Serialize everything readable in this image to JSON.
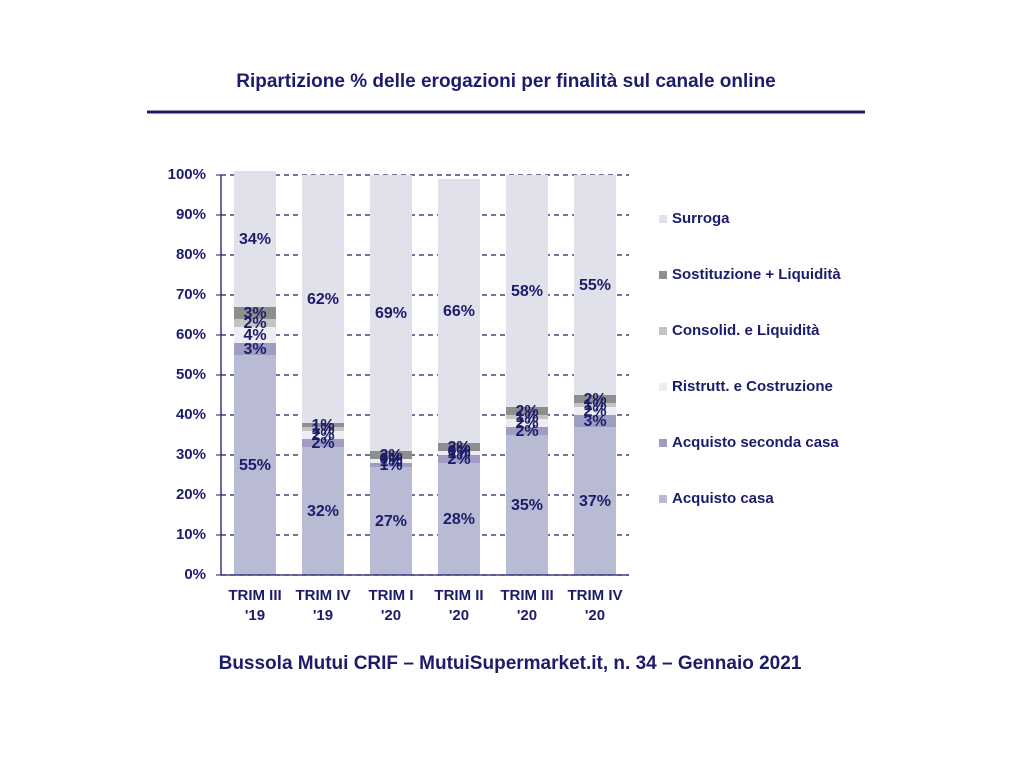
{
  "chart_data": {
    "type": "bar",
    "stacked": true,
    "title": "Ripartizione % delle erogazioni per finalità sul canale online",
    "source": "Bussola Mutui CRIF – MutuiSupermarket.it, n. 34 – Gennaio 2021",
    "categories": [
      "TRIM III '19",
      "TRIM IV '19",
      "TRIM I '20",
      "TRIM II '20",
      "TRIM III '20",
      "TRIM IV '20"
    ],
    "series": [
      {
        "name": "Acquisto casa",
        "color": "#b9bad3",
        "values": [
          55,
          32,
          27,
          28,
          35,
          37
        ],
        "value_labels": [
          "55%",
          "32%",
          "27%",
          "28%",
          "35%",
          "37%"
        ]
      },
      {
        "name": "Acquisto seconda casa",
        "color": "#9d9ec2",
        "values": [
          3,
          2,
          1,
          2,
          2,
          3
        ],
        "value_labels": [
          "3%",
          "2%",
          "1%",
          "2%",
          "2%",
          "3%"
        ]
      },
      {
        "name": "Ristrutt. e Costruzione",
        "color": "#ededf3",
        "values": [
          4,
          2,
          1,
          1,
          2,
          2
        ],
        "value_labels": [
          "4%",
          "2%",
          "1%",
          "1%",
          "2%",
          "2%"
        ]
      },
      {
        "name": "Consolid. e Liquidità",
        "color": "#c4c4c4",
        "values": [
          2,
          1,
          0,
          0,
          1,
          1
        ],
        "value_labels": [
          "2%",
          "1%",
          "0%",
          "0%",
          "1%",
          "1%"
        ]
      },
      {
        "name": "Sostituzione + Liquidità",
        "color": "#8e8e8e",
        "values": [
          3,
          1,
          2,
          2,
          2,
          2
        ],
        "value_labels": [
          "3%",
          "1%",
          "2%",
          "2%",
          "2%",
          "2%"
        ]
      },
      {
        "name": "Surroga",
        "color": "#e1e1ec",
        "values": [
          34,
          62,
          69,
          66,
          58,
          55
        ],
        "value_labels": [
          "34%",
          "62%",
          "69%",
          "66%",
          "58%",
          "55%"
        ]
      }
    ],
    "ylim": [
      0,
      100
    ],
    "yticks": [
      {
        "value": 0,
        "label": "0%"
      },
      {
        "value": 10,
        "label": "10%"
      },
      {
        "value": 20,
        "label": "20%"
      },
      {
        "value": 30,
        "label": "30%"
      },
      {
        "value": 40,
        "label": "40%"
      },
      {
        "value": 50,
        "label": "50%"
      },
      {
        "value": 60,
        "label": "60%"
      },
      {
        "value": 70,
        "label": "70%"
      },
      {
        "value": 80,
        "label": "80%"
      },
      {
        "value": 90,
        "label": "90%"
      },
      {
        "value": 100,
        "label": "100%"
      }
    ],
    "grid": true,
    "legend": "right"
  }
}
